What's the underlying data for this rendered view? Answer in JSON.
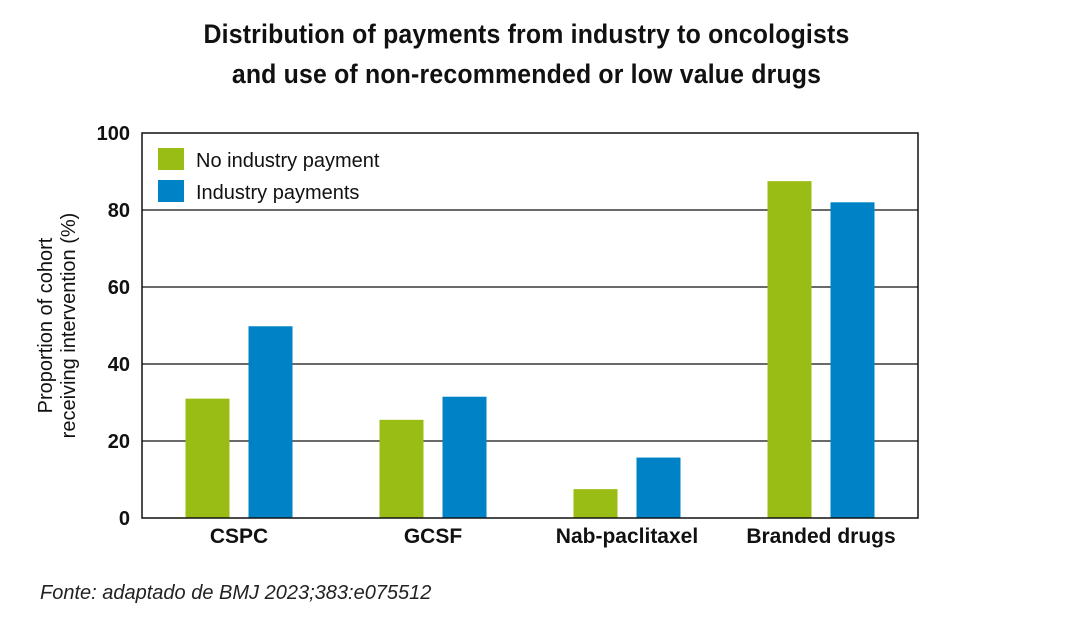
{
  "title_lines": [
    "Distribution of payments from industry to oncologists",
    "and use of non-recommended or low value drugs"
  ],
  "source": "Fonte: adaptado de BMJ 2023;383:e075512",
  "colors": {
    "no_payment": "#99bd14",
    "payments": "#0083c6",
    "grid": "#111111"
  },
  "chart_data": {
    "type": "bar",
    "title": "Distribution of payments from industry to oncologists and use of non-recommended or low value drugs",
    "ylabel_lines": [
      "Proportion of cohort",
      "receiving intervention (%)"
    ],
    "xlabel": "",
    "categories": [
      "CSPC",
      "GCSF",
      "Nab-paclitaxel",
      "Branded drugs"
    ],
    "series": [
      {
        "name": "No industry payment",
        "values": [
          31,
          25.5,
          7.5,
          87.5
        ]
      },
      {
        "name": "Industry payments",
        "values": [
          49.8,
          31.5,
          15.7,
          82
        ]
      }
    ],
    "ylim": [
      0,
      100
    ],
    "yticks": [
      "0",
      "20",
      "40",
      "60",
      "80",
      "100"
    ],
    "grid": true,
    "legend_position": "top-left"
  }
}
